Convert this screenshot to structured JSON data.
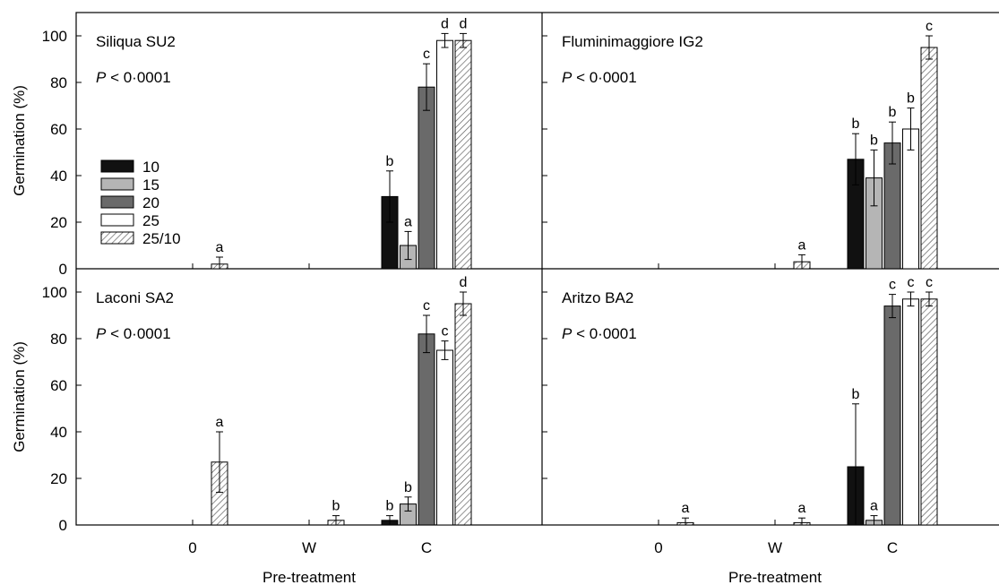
{
  "chart_data": {
    "type": "bar",
    "ylabel": "Germination (%)",
    "xlabel": "Pre-treatment",
    "ylim": [
      0,
      110
    ],
    "yticks": [
      "0",
      "20",
      "40",
      "60",
      "80",
      "100"
    ],
    "categories": [
      "0",
      "W",
      "C"
    ],
    "legend": {
      "placement": "left (top-left panel)",
      "entries": [
        {
          "name": "10",
          "color": "#111111",
          "pattern": "solid"
        },
        {
          "name": "15",
          "color": "#b5b5b5",
          "pattern": "solid"
        },
        {
          "name": "20",
          "color": "#6a6a6a",
          "pattern": "solid"
        },
        {
          "name": "25",
          "color": "#ffffff",
          "pattern": "solid"
        },
        {
          "name": "25/10",
          "color": "#ffffff",
          "pattern": "hatch"
        }
      ]
    },
    "panels": [
      {
        "title": "Siliqua SU2",
        "p_prefix": "P",
        "p_rest": " < 0·0001",
        "bars": [
          {
            "category": "0",
            "series": "25/10",
            "value": 2,
            "err": 3,
            "letter": "a"
          },
          {
            "category": "C",
            "series": "10",
            "value": 31,
            "err": 11,
            "letter": "b"
          },
          {
            "category": "C",
            "series": "15",
            "value": 10,
            "err": 6,
            "letter": "a"
          },
          {
            "category": "C",
            "series": "20",
            "value": 78,
            "err": 10,
            "letter": "c"
          },
          {
            "category": "C",
            "series": "25",
            "value": 98,
            "err": 3,
            "letter": "d"
          },
          {
            "category": "C",
            "series": "25/10",
            "value": 98,
            "err": 3,
            "letter": "d"
          }
        ]
      },
      {
        "title": "Fluminimaggiore IG2",
        "p_prefix": "P",
        "p_rest": " < 0·0001",
        "bars": [
          {
            "category": "W",
            "series": "25/10",
            "value": 3,
            "err": 3,
            "letter": "a"
          },
          {
            "category": "C",
            "series": "10",
            "value": 47,
            "err": 11,
            "letter": "b"
          },
          {
            "category": "C",
            "series": "15",
            "value": 39,
            "err": 12,
            "letter": "b"
          },
          {
            "category": "C",
            "series": "20",
            "value": 54,
            "err": 9,
            "letter": "b"
          },
          {
            "category": "C",
            "series": "25",
            "value": 60,
            "err": 9,
            "letter": "b"
          },
          {
            "category": "C",
            "series": "25/10",
            "value": 95,
            "err": 5,
            "letter": "c"
          }
        ]
      },
      {
        "title": "Laconi SA2",
        "p_prefix": "P",
        "p_rest": " < 0·0001",
        "bars": [
          {
            "category": "0",
            "series": "25/10",
            "value": 27,
            "err": 13,
            "letter": "a"
          },
          {
            "category": "W",
            "series": "25/10",
            "value": 2,
            "err": 2,
            "letter": "b"
          },
          {
            "category": "C",
            "series": "10",
            "value": 2,
            "err": 2,
            "letter": "b"
          },
          {
            "category": "C",
            "series": "15",
            "value": 9,
            "err": 3,
            "letter": "b"
          },
          {
            "category": "C",
            "series": "20",
            "value": 82,
            "err": 8,
            "letter": "c"
          },
          {
            "category": "C",
            "series": "25",
            "value": 75,
            "err": 4,
            "letter": "c"
          },
          {
            "category": "C",
            "series": "25/10",
            "value": 95,
            "err": 5,
            "letter": "d"
          }
        ]
      },
      {
        "title": "Aritzo BA2",
        "p_prefix": "P",
        "p_rest": " < 0·0001",
        "bars": [
          {
            "category": "0",
            "series": "25/10",
            "value": 1,
            "err": 2,
            "letter": "a"
          },
          {
            "category": "W",
            "series": "25/10",
            "value": 1,
            "err": 2,
            "letter": "a"
          },
          {
            "category": "C",
            "series": "10",
            "value": 25,
            "err": 27,
            "letter": "b"
          },
          {
            "category": "C",
            "series": "15",
            "value": 2,
            "err": 2,
            "letter": "a"
          },
          {
            "category": "C",
            "series": "20",
            "value": 94,
            "err": 5,
            "letter": "c"
          },
          {
            "category": "C",
            "series": "25",
            "value": 97,
            "err": 3,
            "letter": "c"
          },
          {
            "category": "C",
            "series": "25/10",
            "value": 97,
            "err": 3,
            "letter": "c"
          }
        ]
      }
    ]
  }
}
